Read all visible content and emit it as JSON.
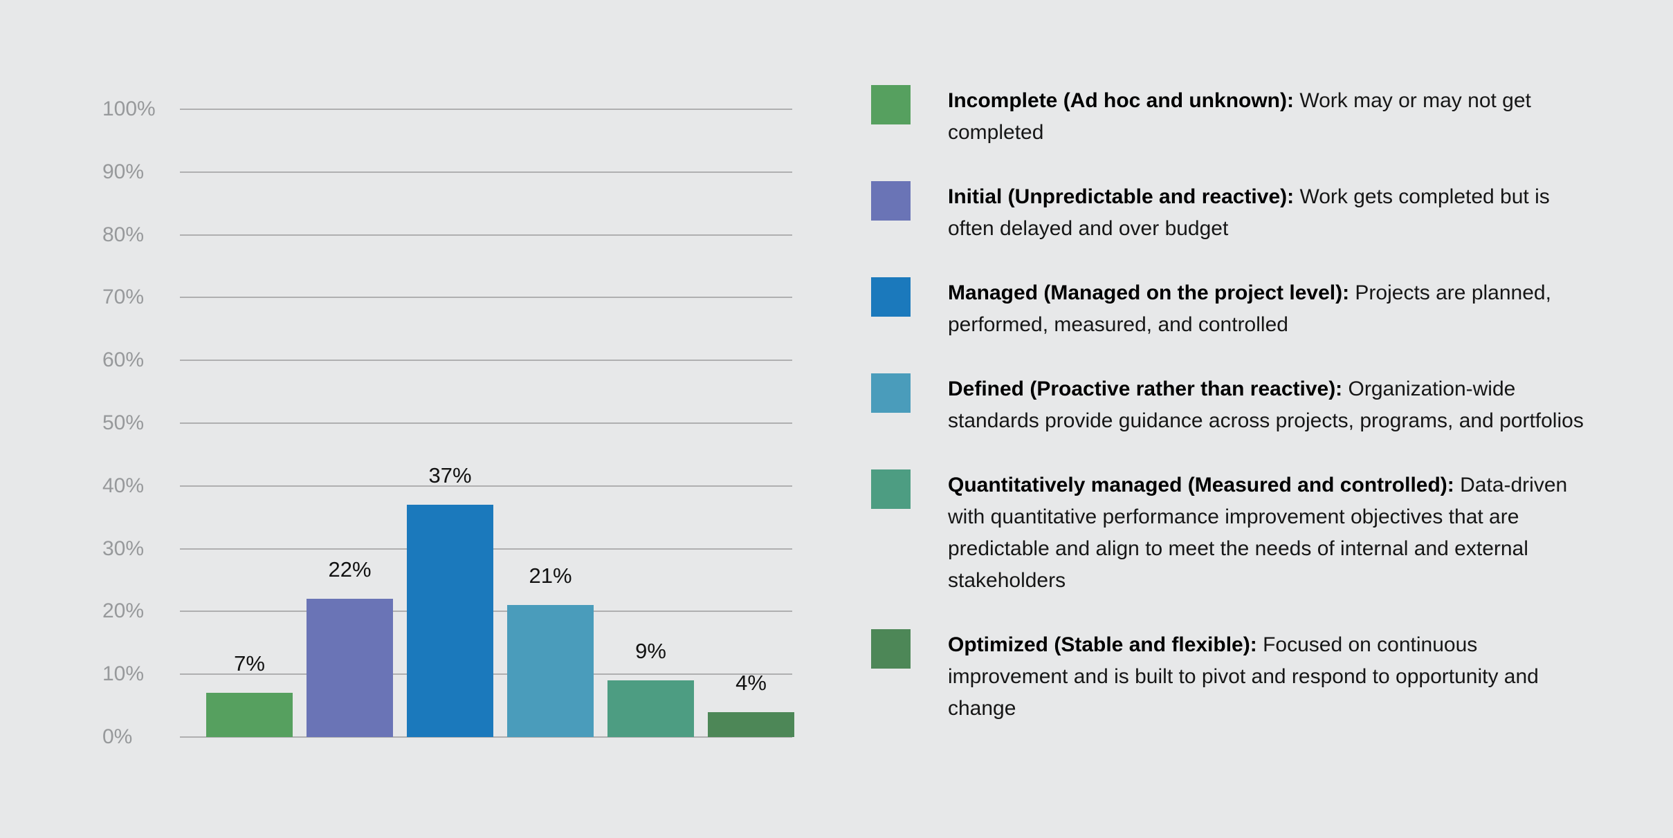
{
  "background_color": "#E7E8E9",
  "chart_data": {
    "type": "bar",
    "title": "",
    "xlabel": "",
    "ylabel": "",
    "categories": [
      "Incomplete",
      "Initial",
      "Managed",
      "Defined",
      "Quantitatively managed",
      "Optimized"
    ],
    "values": [
      7,
      22,
      37,
      21,
      9,
      4
    ],
    "value_labels": [
      "7%",
      "22%",
      "37%",
      "21%",
      "9%",
      "4%"
    ],
    "bar_colors": [
      "#56A05F",
      "#6A74B6",
      "#1B79BC",
      "#4A9CBB",
      "#4D9D82",
      "#4D8757"
    ],
    "ylim": [
      0,
      100
    ],
    "y_ticks": [
      {
        "value": 100,
        "label": "100%"
      },
      {
        "value": 90,
        "label": "90%"
      },
      {
        "value": 80,
        "label": "80%"
      },
      {
        "value": 70,
        "label": "70%"
      },
      {
        "value": 60,
        "label": "60%"
      },
      {
        "value": 50,
        "label": "50%"
      },
      {
        "value": 40,
        "label": "40%"
      },
      {
        "value": 30,
        "label": "30%"
      },
      {
        "value": 20,
        "label": "20%"
      },
      {
        "value": 10,
        "label": "10%"
      },
      {
        "value": 0,
        "label": "0%"
      }
    ],
    "grid": true,
    "legend_position": "right",
    "legend": [
      {
        "title": "Incomplete (Ad hoc and unknown):",
        "description": "Work may or may not get completed",
        "color": "#56A05F"
      },
      {
        "title": "Initial (Unpredictable and reactive):",
        "description": "Work gets completed but is often delayed and over budget",
        "color": "#6A74B6"
      },
      {
        "title": "Managed (Managed on the project level):",
        "description": "Projects are planned, performed, measured, and controlled",
        "color": "#1B79BC"
      },
      {
        "title": "Defined (Proactive rather than reactive):",
        "description": "Organization-wide standards provide guidance across projects, programs, and portfolios",
        "color": "#4A9CBB"
      },
      {
        "title": "Quantitatively managed (Measured and controlled):",
        "description": "Data-driven with quantitative performance improvement objectives that are predictable and align to meet the needs of internal and external stakeholders",
        "color": "#4D9D82"
      },
      {
        "title": "Optimized (Stable and flexible):",
        "description": "Focused on continuous improvement and is built to pivot and respond to opportunity and change",
        "color": "#4D8757"
      }
    ]
  },
  "style": {
    "gridline_color": "#AFAFB0",
    "axis_tick_color": "#97999B",
    "value_label_color": "#111111",
    "legend_text_color": "#161616"
  }
}
